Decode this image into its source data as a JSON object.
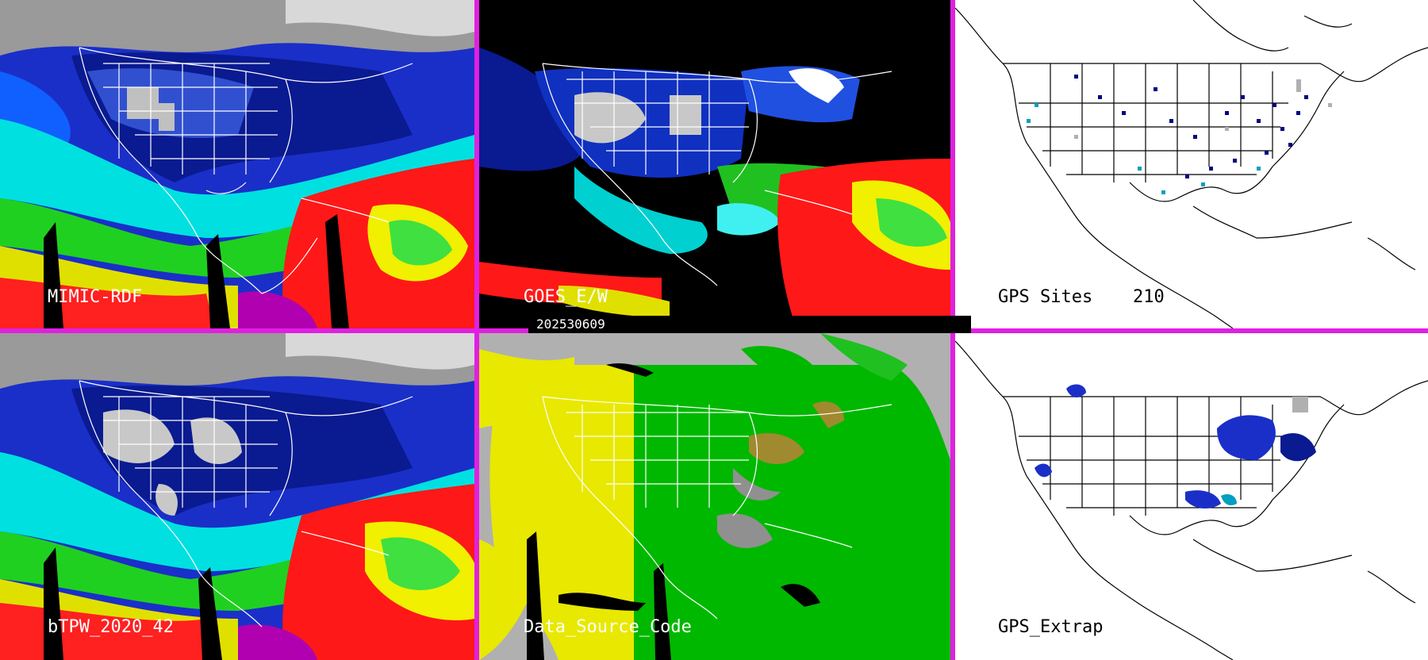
{
  "panels": [
    {
      "id": "mimic",
      "label": "MIMIC-RDF"
    },
    {
      "id": "goes",
      "label": "GOES_E/W"
    },
    {
      "id": "gps-sites",
      "label": "GPS Sites",
      "count": "210"
    },
    {
      "id": "btpw",
      "label": "bTPW_2020_42"
    },
    {
      "id": "source",
      "label": "Data_Source_Code"
    },
    {
      "id": "gps-extrap",
      "label": "GPS_Extrap"
    }
  ],
  "date_stamp": "202530609",
  "colors": {
    "border": "#e020e0",
    "tpw_scale": [
      "#ffffff",
      "#b0b0b0",
      "#000080",
      "#0020c0",
      "#2060ff",
      "#00e0e0",
      "#00c000",
      "#40ff40",
      "#ffff00",
      "#ff0000",
      "#a000a0"
    ],
    "source_yellow": "#e8e800",
    "source_green": "#00b800",
    "source_gray": "#b0b0b0"
  }
}
